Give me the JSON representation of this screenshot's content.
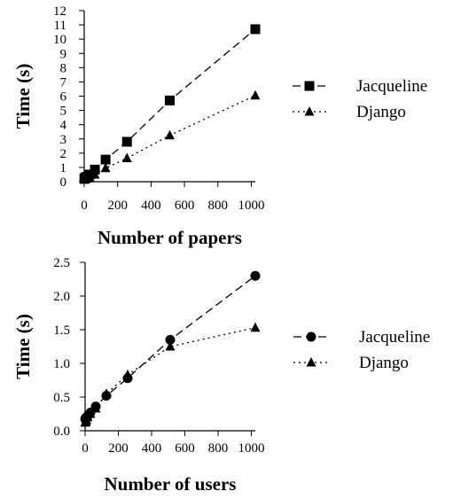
{
  "chart_data": [
    {
      "type": "line",
      "xlabel": "Number of papers",
      "ylabel": "Time (s)",
      "xlim": [
        0,
        1024
      ],
      "ylim": [
        0,
        12
      ],
      "x_ticks": [
        "0",
        "200",
        "400",
        "600",
        "800",
        "1000"
      ],
      "y_ticks": [
        "0",
        "1",
        "2",
        "3",
        "4",
        "5",
        "6",
        "7",
        "8",
        "9",
        "10",
        "11",
        "12"
      ],
      "legend_position": "right",
      "grid": false,
      "series": [
        {
          "name": "Jacqueline",
          "marker": "square",
          "line_style": "dashed",
          "x": [
            1,
            2,
            4,
            8,
            16,
            32,
            64,
            128,
            256,
            512,
            1024
          ],
          "y": [
            0.2,
            0.22,
            0.25,
            0.3,
            0.35,
            0.5,
            0.85,
            1.55,
            2.8,
            5.7,
            10.7
          ]
        },
        {
          "name": "Django",
          "marker": "triangle",
          "line_style": "dotted",
          "x": [
            1,
            2,
            4,
            8,
            16,
            32,
            64,
            128,
            256,
            512,
            1024
          ],
          "y": [
            0.15,
            0.15,
            0.17,
            0.2,
            0.22,
            0.3,
            0.5,
            0.95,
            1.65,
            3.25,
            6.05
          ]
        }
      ]
    },
    {
      "type": "line",
      "xlabel": "Number of users",
      "ylabel": "Time (s)",
      "xlim": [
        0,
        1024
      ],
      "ylim": [
        0,
        2.5
      ],
      "x_ticks": [
        "0",
        "200",
        "400",
        "600",
        "800",
        "1000"
      ],
      "y_ticks": [
        "0.0",
        "0.5",
        "1.0",
        "1.5",
        "2.0",
        "2.5"
      ],
      "legend_position": "right",
      "grid": false,
      "series": [
        {
          "name": "Jacqueline",
          "marker": "circle",
          "line_style": "dashed",
          "x": [
            1,
            2,
            4,
            8,
            16,
            32,
            64,
            128,
            256,
            512,
            1024
          ],
          "y": [
            0.17,
            0.18,
            0.19,
            0.2,
            0.22,
            0.27,
            0.36,
            0.52,
            0.78,
            1.35,
            2.3
          ]
        },
        {
          "name": "Django",
          "marker": "triangle",
          "line_style": "dotted",
          "x": [
            1,
            2,
            4,
            8,
            16,
            32,
            64,
            128,
            256,
            512,
            1024
          ],
          "y": [
            0.12,
            0.13,
            0.14,
            0.16,
            0.2,
            0.25,
            0.33,
            0.55,
            0.83,
            1.25,
            1.53
          ]
        }
      ]
    }
  ]
}
